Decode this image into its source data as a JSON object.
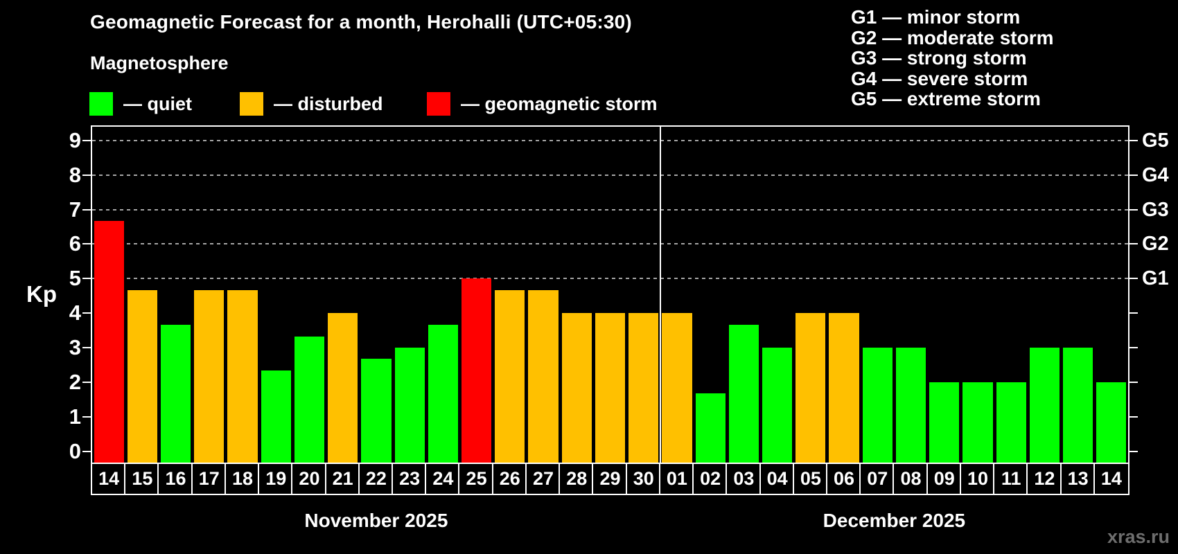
{
  "header": {
    "title": "Geomagnetic Forecast for a month, Herohalli (UTC+05:30)",
    "subtitle": "Magnetosphere"
  },
  "legend": {
    "items": [
      {
        "label": "— quiet",
        "status": "quiet"
      },
      {
        "label": "— disturbed",
        "status": "disturbed"
      },
      {
        "label": "— geomagnetic storm",
        "status": "storm"
      }
    ]
  },
  "storm_scale_legend": {
    "lines": [
      "G1 — minor storm",
      "G2 — moderate storm",
      "G3 — strong storm",
      "G4 — severe storm",
      "G5 — extreme storm"
    ]
  },
  "colors": {
    "quiet": "#00ff00",
    "disturbed": "#ffc000",
    "storm": "#ff0000",
    "background": "#000000",
    "axis": "#ffffff",
    "gridline": "#a6a6a6",
    "watermark": "#6e6e6e"
  },
  "axes": {
    "y_label": "Kp",
    "y_ticks": [
      0,
      1,
      2,
      3,
      4,
      5,
      6,
      7,
      8,
      9
    ],
    "right_labels": [
      {
        "kp": 5,
        "label": "G1"
      },
      {
        "kp": 6,
        "label": "G2"
      },
      {
        "kp": 7,
        "label": "G3"
      },
      {
        "kp": 8,
        "label": "G4"
      },
      {
        "kp": 9,
        "label": "G5"
      }
    ],
    "gridlines_at_kp": [
      5,
      6,
      7,
      8,
      9
    ]
  },
  "months": [
    {
      "label": "November 2025",
      "start_index": 0,
      "count": 17
    },
    {
      "label": "December 2025",
      "start_index": 17,
      "count": 14
    }
  ],
  "watermark": "xras.ru",
  "chart_data": {
    "type": "bar",
    "title": "Geomagnetic Forecast for a month, Herohalli (UTC+05:30)",
    "xlabel": "",
    "ylabel": "Kp",
    "ylim": [
      0,
      9.6
    ],
    "legend_position": "top-left",
    "grid": "dashed horizontal at Kp 5-9",
    "categories": [
      "14",
      "15",
      "16",
      "17",
      "18",
      "19",
      "20",
      "21",
      "22",
      "23",
      "24",
      "25",
      "26",
      "27",
      "28",
      "29",
      "30",
      "01",
      "02",
      "03",
      "04",
      "05",
      "06",
      "07",
      "08",
      "09",
      "10",
      "11",
      "12",
      "13",
      "14"
    ],
    "values": [
      6.67,
      4.67,
      3.67,
      4.67,
      4.67,
      2.33,
      3.33,
      4.0,
      2.67,
      3.0,
      3.67,
      5.0,
      4.67,
      4.67,
      4.0,
      4.0,
      4.0,
      4.0,
      1.67,
      3.67,
      3.0,
      4.0,
      4.0,
      3.0,
      3.0,
      2.0,
      2.0,
      2.0,
      3.0,
      3.0,
      2.0
    ],
    "statuses": [
      "storm",
      "disturbed",
      "quiet",
      "disturbed",
      "disturbed",
      "quiet",
      "quiet",
      "disturbed",
      "quiet",
      "quiet",
      "quiet",
      "storm",
      "disturbed",
      "disturbed",
      "disturbed",
      "disturbed",
      "disturbed",
      "disturbed",
      "quiet",
      "quiet",
      "quiet",
      "disturbed",
      "disturbed",
      "quiet",
      "quiet",
      "quiet",
      "quiet",
      "quiet",
      "quiet",
      "quiet",
      "quiet"
    ]
  }
}
